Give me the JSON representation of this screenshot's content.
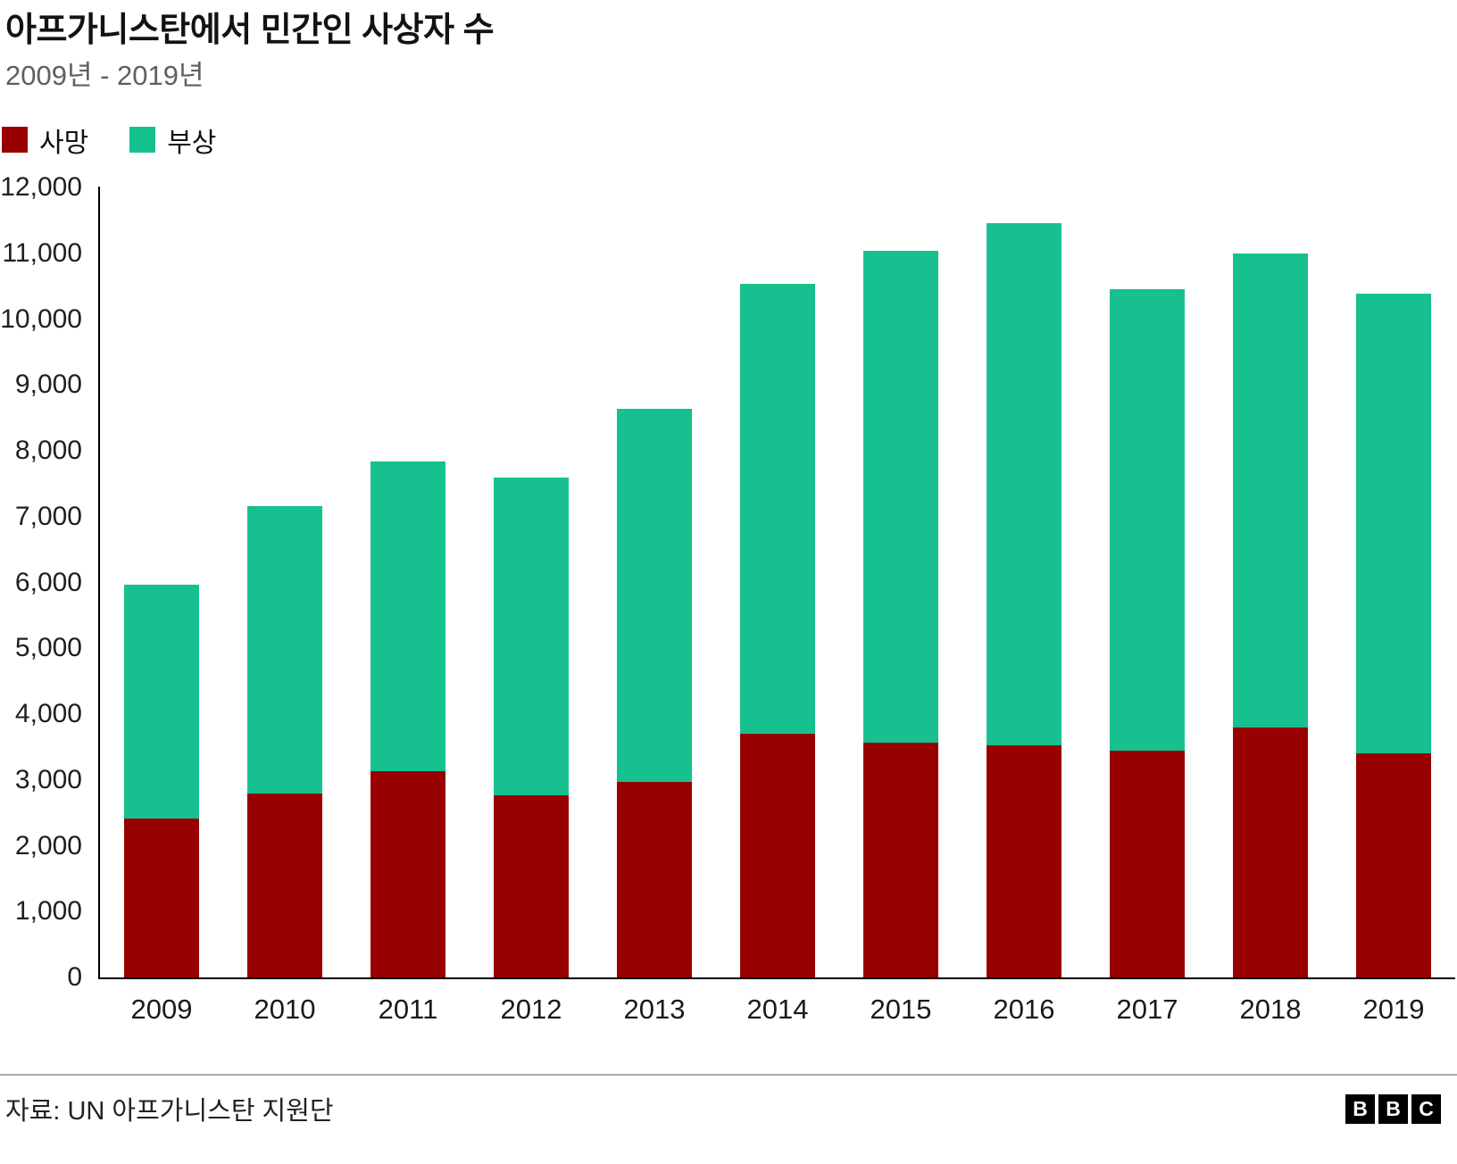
{
  "header": {
    "title": "아프가니스탄에서 민간인 사상자 수",
    "subtitle": "2009년 - 2019년"
  },
  "chart_data": {
    "type": "bar",
    "stacked": true,
    "title": "아프가니스탄에서 민간인 사상자 수",
    "subtitle": "2009년 - 2019년",
    "categories": [
      "2009",
      "2010",
      "2011",
      "2012",
      "2013",
      "2014",
      "2015",
      "2016",
      "2017",
      "2018",
      "2019"
    ],
    "series": [
      {
        "name": "사망",
        "color": "#990000",
        "values": [
          2412,
          2792,
          3133,
          2769,
          2969,
          3701,
          3565,
          3527,
          3442,
          3803,
          3403
        ]
      },
      {
        "name": "부상",
        "color": "#17c08f",
        "values": [
          3557,
          4368,
          4709,
          4821,
          5668,
          6834,
          7470,
          7925,
          7019,
          7191,
          6989
        ]
      }
    ],
    "xlabel": "",
    "ylabel": "",
    "ylim": [
      0,
      12000
    ],
    "y_ticks": [
      "0",
      "1,000",
      "2,000",
      "3,000",
      "4,000",
      "5,000",
      "6,000",
      "7,000",
      "8,000",
      "9,000",
      "10,000",
      "11,000",
      "12,000"
    ],
    "grid": false,
    "legend_position": "top-left"
  },
  "footer": {
    "source": "자료: UN 아프가니스탄 지원단",
    "logo_letters": [
      "B",
      "B",
      "C"
    ]
  }
}
